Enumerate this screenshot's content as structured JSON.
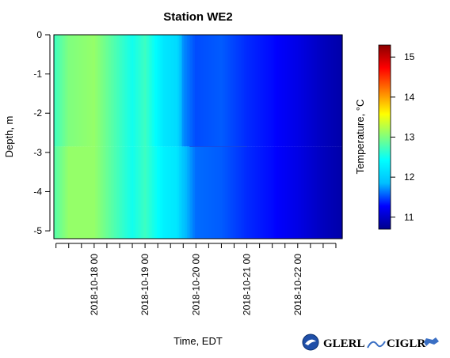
{
  "chart_data": {
    "type": "heatmap",
    "title": "Station WE2",
    "xlabel": "Time, EDT",
    "ylabel": "Depth, m",
    "x_ticks": [
      "2018-10-18 00",
      "2018-10-19 00",
      "2018-10-20 00",
      "2018-10-21 00",
      "2018-10-22 00"
    ],
    "x_range": [
      "2018-10-17 05:00",
      "2018-10-22 21:00"
    ],
    "y_ticks": [
      0,
      -1,
      -2,
      -3,
      -4,
      -5
    ],
    "ylim": [
      -5.2,
      0
    ],
    "colorbar": {
      "label": "Temperature, °C",
      "ticks": [
        11,
        12,
        13,
        14,
        15
      ],
      "range": [
        10.7,
        15.3
      ],
      "colors": [
        "#00008b",
        "#0000ff",
        "#00bfff",
        "#00ffff",
        "#7fff7f",
        "#ffff00",
        "#ff7f00",
        "#ff0000",
        "#8b0000"
      ]
    },
    "time_profile": {
      "times": [
        "2018-10-17 05:00",
        "2018-10-17 12:00",
        "2018-10-18 00:00",
        "2018-10-18 06:00",
        "2018-10-18 18:00",
        "2018-10-19 00:00",
        "2018-10-19 09:00",
        "2018-10-19 15:00",
        "2018-10-19 18:00",
        "2018-10-20 00:00",
        "2018-10-20 12:00",
        "2018-10-21 00:00",
        "2018-10-21 12:00",
        "2018-10-22 00:00",
        "2018-10-22 12:00",
        "2018-10-22 21:00"
      ],
      "upper_temp_c": [
        12.7,
        13.0,
        13.1,
        12.9,
        12.5,
        12.7,
        12.2,
        12.1,
        11.7,
        11.5,
        11.55,
        11.4,
        11.3,
        11.15,
        10.95,
        10.85
      ],
      "lower_temp_c": [
        12.8,
        13.1,
        13.1,
        12.9,
        12.5,
        12.7,
        12.3,
        12.2,
        11.9,
        11.6,
        11.55,
        11.4,
        11.3,
        11.15,
        10.95,
        10.85
      ]
    },
    "layer_boundary_depth_m": -2.85,
    "layer_boundary_span": [
      "2018-10-19 21:00",
      "2018-10-21 00:00"
    ]
  },
  "logos": {
    "glerl": "GLERL",
    "ciglr": "CIGLR"
  }
}
